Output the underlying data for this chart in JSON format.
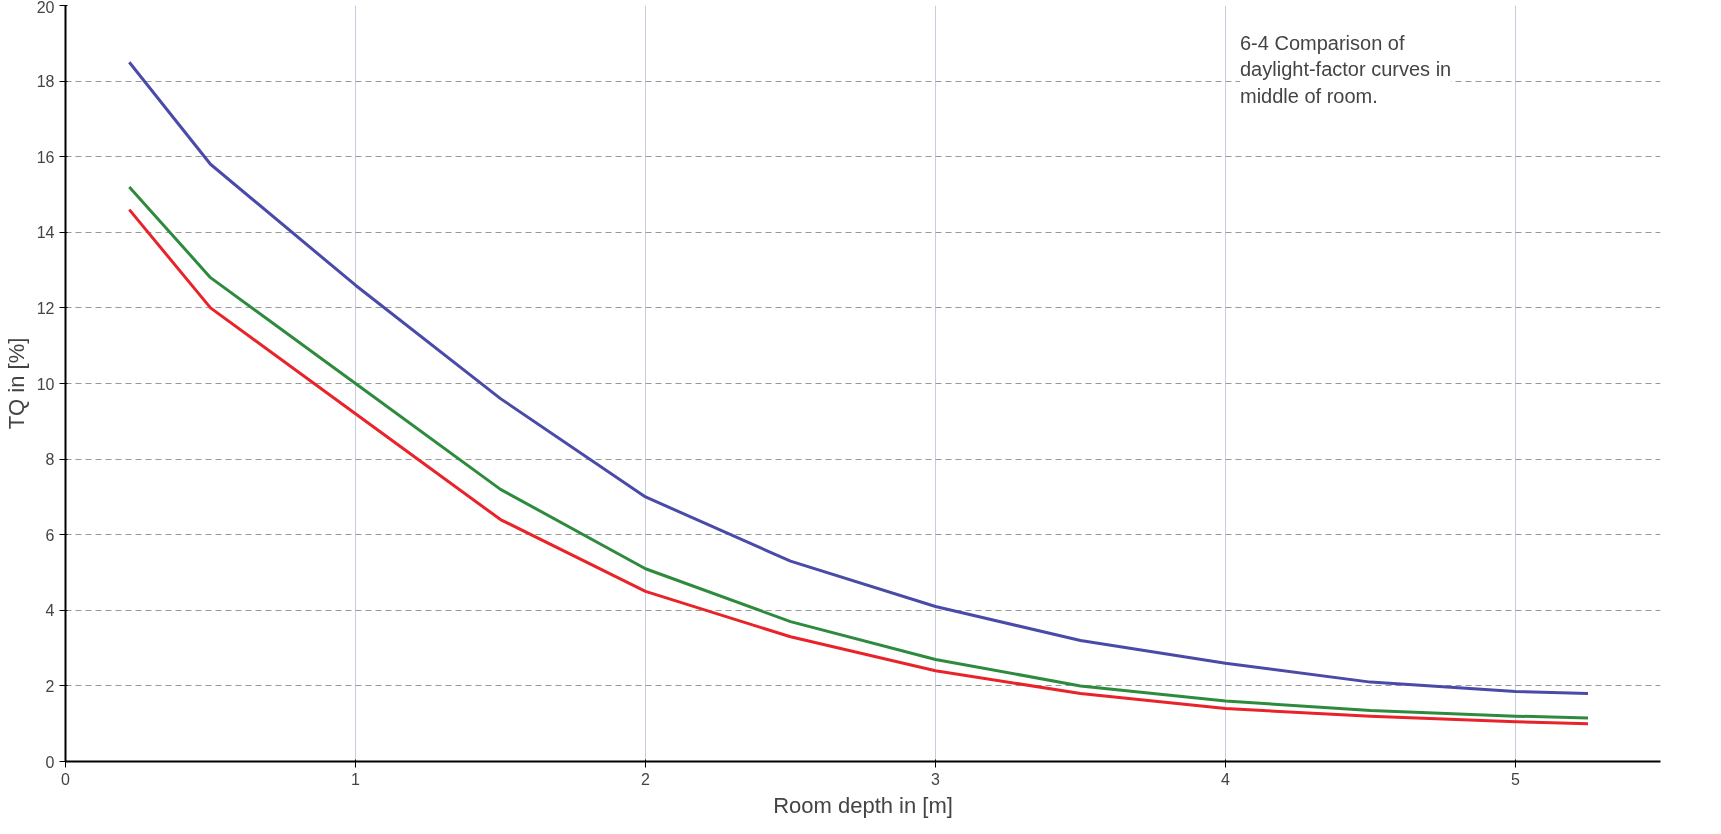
{
  "chart_data": {
    "type": "line",
    "xlabel": "Room depth in [m]",
    "ylabel": "TQ in [%]",
    "annotations": [
      "6-4  Comparison of daylight-factor curves in middle of room."
    ],
    "x": [
      0.22,
      0.5,
      1,
      1.5,
      2,
      2.5,
      3,
      3.5,
      4,
      4.5,
      5,
      5.25
    ],
    "series": [
      {
        "color": "#4a4aa8",
        "values": [
          18.5,
          15.8,
          12.6,
          9.6,
          7.0,
          5.3,
          4.1,
          3.2,
          2.6,
          2.1,
          1.85,
          1.8
        ]
      },
      {
        "color": "#2e8b3e",
        "values": [
          15.2,
          12.8,
          10.0,
          7.2,
          5.1,
          3.7,
          2.7,
          2.0,
          1.6,
          1.35,
          1.2,
          1.15
        ]
      },
      {
        "color": "#e8242a",
        "values": [
          14.6,
          12.0,
          9.2,
          6.4,
          4.5,
          3.3,
          2.4,
          1.8,
          1.4,
          1.2,
          1.05,
          1.0
        ]
      }
    ],
    "xlim": [
      0,
      5.5
    ],
    "ylim": [
      0,
      20
    ],
    "xticks": [
      0,
      1,
      2,
      3,
      4,
      5
    ],
    "yticks": [
      0,
      2,
      4,
      6,
      8,
      10,
      12,
      14,
      16,
      18,
      20
    ],
    "grid": true,
    "line_style": "solid",
    "marker": "none"
  }
}
